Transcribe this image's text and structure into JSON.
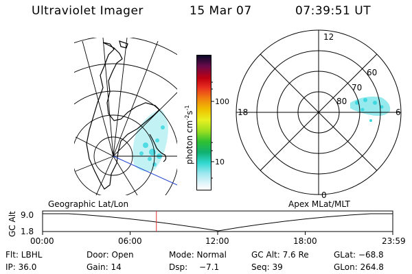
{
  "header": {
    "instrument": "Ultraviolet Imager",
    "date": "15 Mar 07",
    "time": "07:39:51 UT"
  },
  "colorbar": {
    "unit": "photon cm",
    "unit_exp1": "-2",
    "unit_mid": "s",
    "unit_exp2": "-1",
    "ticks": [
      "100",
      "10"
    ]
  },
  "polar": {
    "mlt_labels": {
      "top": "12",
      "left": "18",
      "right": "6",
      "bottom": "0"
    },
    "lat_labels": [
      "80",
      "70",
      "60"
    ]
  },
  "timeline": {
    "left_title": "Geographic Lat/Lon",
    "right_title": "Apex MLat/MLT",
    "ylabel": "GC Alt",
    "yticks": [
      "9.0",
      "1.8"
    ],
    "xticks": [
      "00:00",
      "06:00",
      "12:00",
      "18:00",
      "23:59"
    ],
    "current_time_fraction": 0.325
  },
  "status": {
    "filter": "Flt: LBHL",
    "door": "Door: Open",
    "mode": "Mode: Normal",
    "gc_alt": "GC Alt: 7.6 Re",
    "glat": "GLat: −68.8",
    "ip": "IP: 36.0",
    "gain": "Gain: 14",
    "dsp": "Dsp:",
    "dsp_val": "−7.1",
    "seq": "Seq: 39",
    "glon": "GLon: 264.8"
  },
  "colors": {
    "aurora": "#3fd8e0",
    "current_marker": "#e03030",
    "meridian": "#2040d0"
  }
}
